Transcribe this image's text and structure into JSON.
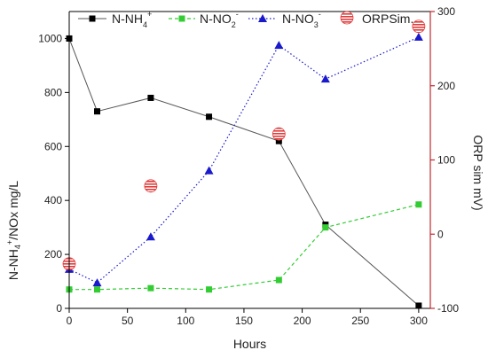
{
  "chart_data": {
    "type": "line",
    "xlabel": "Hours",
    "ylabel_left": "N-NH4+/NOx mg/L",
    "ylabel_right": "ORP sim mV)",
    "xlim": [
      0,
      310
    ],
    "ylim_left": [
      0,
      1100
    ],
    "ylim_right": [
      -100,
      300
    ],
    "x_ticks": [
      0,
      50,
      100,
      150,
      200,
      250,
      300
    ],
    "y_ticks_left": [
      0,
      200,
      400,
      600,
      800,
      1000
    ],
    "y_ticks_right": [
      -100,
      0,
      100,
      200,
      300
    ],
    "grid": false,
    "legend_placement": "top",
    "series": [
      {
        "name": "N-NH4+",
        "axis": "left",
        "style": "solid",
        "marker": "square",
        "color": "#000000",
        "line_color": "#555555",
        "points": [
          [
            0,
            1000
          ],
          [
            24,
            730
          ],
          [
            70,
            780
          ],
          [
            120,
            710
          ],
          [
            180,
            620
          ],
          [
            220,
            310
          ],
          [
            300,
            10
          ]
        ]
      },
      {
        "name": "N-NO2-",
        "axis": "left",
        "style": "dashed",
        "marker": "square",
        "color": "#33cc33",
        "line_color": "#33cc33",
        "points": [
          [
            0,
            70
          ],
          [
            24,
            70
          ],
          [
            70,
            75
          ],
          [
            120,
            70
          ],
          [
            180,
            105
          ],
          [
            220,
            300
          ],
          [
            300,
            385
          ]
        ]
      },
      {
        "name": "N-NO3-",
        "axis": "left",
        "style": "dotted",
        "marker": "triangle",
        "color": "#1a1acc",
        "line_color": "#1a1acc",
        "points": [
          [
            0,
            145
          ],
          [
            24,
            95
          ],
          [
            70,
            265
          ],
          [
            120,
            510
          ],
          [
            180,
            975
          ],
          [
            220,
            850
          ],
          [
            300,
            1005
          ]
        ]
      },
      {
        "name": "ORPSim.",
        "axis": "right",
        "style": "none",
        "marker": "hatched-circle",
        "color": "#e03c3c",
        "line_color": "#e03c3c",
        "points": [
          [
            0,
            -40
          ],
          [
            70,
            65
          ],
          [
            180,
            135
          ],
          [
            300,
            280
          ]
        ]
      }
    ],
    "colors": {
      "axis_left": "#000000",
      "axis_right": "#c0282d"
    }
  }
}
